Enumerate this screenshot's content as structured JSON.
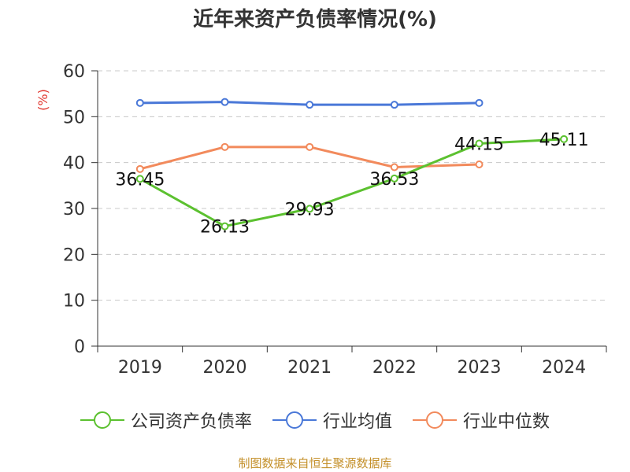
{
  "chart_data": {
    "type": "line",
    "title": "近年来资产负债率情况(%)",
    "ylabel": "(%)",
    "xlabel": "",
    "categories": [
      "2019",
      "2020",
      "2021",
      "2022",
      "2023",
      "2024"
    ],
    "ylim": [
      0,
      60
    ],
    "yticks": [
      0,
      10,
      20,
      30,
      40,
      50,
      60
    ],
    "grid": true,
    "legend_position": "bottom",
    "series": [
      {
        "name": "公司资产负债率",
        "color": "#5cc130",
        "values": [
          36.45,
          26.13,
          29.93,
          36.53,
          44.15,
          45.11
        ],
        "labels": [
          "36.45",
          "26.13",
          "29.93",
          "36.53",
          "44.15",
          "45.11"
        ]
      },
      {
        "name": "行业均值",
        "color": "#4a78d8",
        "values": [
          53.0,
          53.2,
          52.6,
          52.6,
          53.0,
          null
        ]
      },
      {
        "name": "行业中位数",
        "color": "#f28a5c",
        "values": [
          38.6,
          43.4,
          43.4,
          39.0,
          39.6,
          null
        ]
      }
    ]
  },
  "source_text": "制图数据来自恒生聚源数据库"
}
